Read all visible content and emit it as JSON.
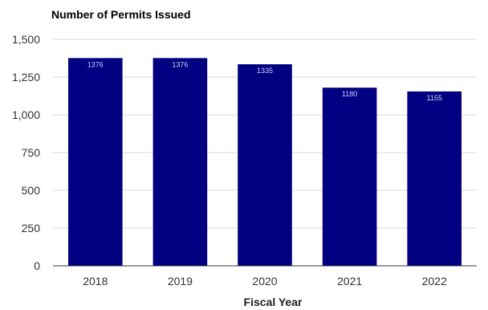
{
  "chart_data": {
    "type": "bar",
    "title": "Number of Permits Issued",
    "xlabel": "Fiscal Year",
    "ylabel": "",
    "categories": [
      "2018",
      "2019",
      "2020",
      "2021",
      "2022"
    ],
    "values": [
      1376,
      1376,
      1335,
      1180,
      1155
    ],
    "data_labels": [
      "1376",
      "1376",
      "1335",
      "1180",
      "1155"
    ],
    "ylim": [
      0,
      1500
    ],
    "yticks": [
      0,
      250,
      500,
      750,
      1000,
      1250,
      1500
    ],
    "ytick_labels": [
      "0",
      "250",
      "500",
      "750",
      "1,000",
      "1,250",
      "1,500"
    ],
    "grid": true,
    "legend": "none",
    "colors": {
      "bar": "#000080",
      "grid": "#d9d9d9",
      "axis": "#333333",
      "data_label": "#d0d0ff"
    }
  }
}
